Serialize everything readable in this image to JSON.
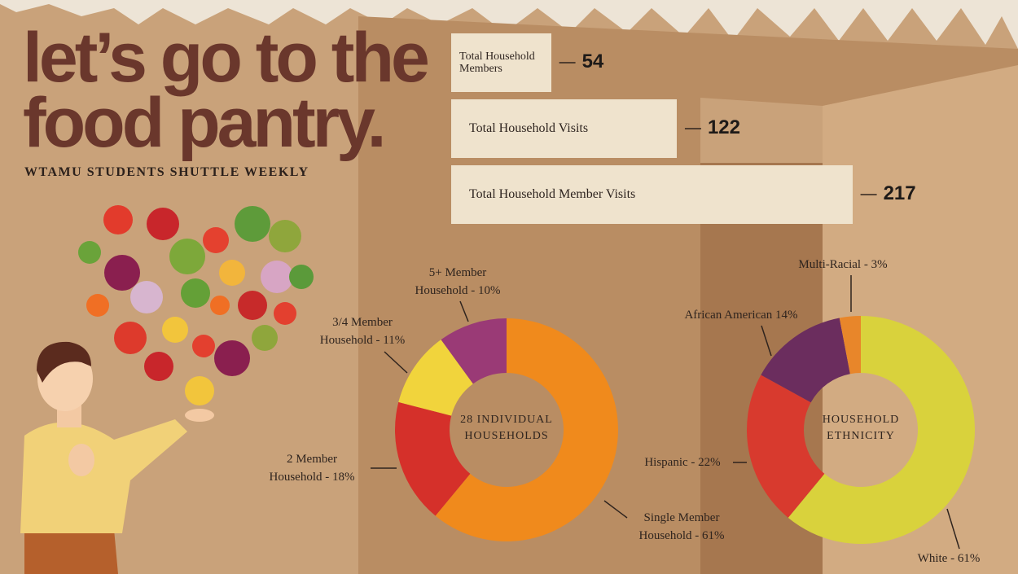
{
  "header": {
    "title_line1": "let’s go to the",
    "title_line2": "food pantry.",
    "subtitle": "WTAMU STUDENTS SHUTTLE WEEKLY"
  },
  "chart_data": [
    {
      "type": "bar",
      "categories": [
        "Total Household Members",
        "Total Household Visits",
        "Total Household Member Visits"
      ],
      "values": [
        54,
        122,
        217
      ],
      "color": "#efe3cd"
    },
    {
      "type": "donut",
      "center_label": "28 INDIVIDUAL HOUSEHOLDS",
      "categories": [
        "Single Member Household - 61%",
        "2 Member Household - 18%",
        "3/4 Member Household - 11%",
        "5+ Member Household - 10%"
      ],
      "values": [
        61,
        18,
        11,
        10
      ],
      "colors": [
        "#f08a1c",
        "#d5302a",
        "#f1d43c",
        "#9a3a76"
      ]
    },
    {
      "type": "donut",
      "center_label": "HOUSEHOLD ETHNICITY",
      "categories": [
        "White - 61%",
        "Hispanic - 22%",
        "African American 14%",
        "Multi-Racial - 3%"
      ],
      "values": [
        61,
        22,
        14,
        3
      ],
      "colors": [
        "#d9d23c",
        "#d83a2e",
        "#6b2d5e",
        "#e8862a"
      ]
    }
  ]
}
